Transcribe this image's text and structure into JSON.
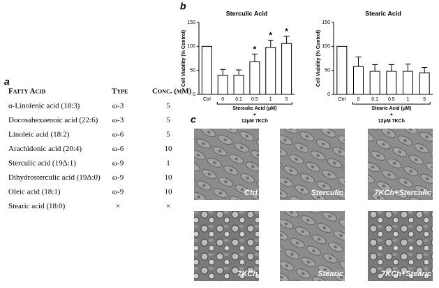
{
  "panels": {
    "a": "a",
    "b": "b",
    "c": "c"
  },
  "table": {
    "header": [
      "Fatty Acid",
      "Type",
      "Conc. (μM)"
    ],
    "rows": [
      [
        "α-Linolenic acid (18:3)",
        "ω-3",
        5
      ],
      [
        "Docosahexaenoic acid (22:6)",
        "ω-3",
        5
      ],
      [
        "Linoleic acid (18:2)",
        "ω-6",
        5
      ],
      [
        "Arachidonic acid (20:4)",
        "ω-6",
        10
      ],
      [
        "Sterculic acid (19Δ:1)",
        "ω-9",
        1
      ],
      [
        "Dihydrosterculic acid (19Δ:0)",
        "ω-9",
        10
      ],
      [
        "Oleic acid (18:1)",
        "ω-9",
        10
      ],
      [
        "Stearic acid (18:0)",
        "×",
        "×"
      ]
    ]
  },
  "chart_data": [
    {
      "type": "bar",
      "title": "Sterculic Acid",
      "ylabel": "Cell Viability (% Control)",
      "categories": [
        "Ctrl",
        "0",
        "0.1",
        "0.5",
        "1",
        "5"
      ],
      "values": [
        100,
        40,
        40,
        68,
        98,
        106
      ],
      "errors": [
        0,
        12,
        11,
        16,
        15,
        15
      ],
      "significance": [
        null,
        null,
        null,
        "*",
        "*",
        "*"
      ],
      "color": "#ffffff",
      "ylim": [
        0,
        150
      ],
      "yticks": [
        0,
        50,
        100,
        150
      ],
      "xlabel_lines": [
        "Sterculic Acid (μM)",
        "+",
        "12μM 7KCh"
      ]
    },
    {
      "type": "bar",
      "title": "Stearic Acid",
      "ylabel": "Cell Viability (% Control)",
      "categories": [
        "Ctrl",
        "0",
        "0.1",
        "0.5",
        "1",
        "5"
      ],
      "values": [
        100,
        58,
        48,
        48,
        48,
        45
      ],
      "errors": [
        0,
        20,
        14,
        14,
        15,
        11
      ],
      "color": "#ffffff",
      "ylim": [
        0,
        150
      ],
      "yticks": [
        0,
        50,
        100,
        150
      ],
      "xlabel_lines": [
        "Stearic Acid (μM)",
        "+",
        "12μM 7KCh"
      ]
    }
  ],
  "micrographs": {
    "labels": [
      "Ctrl",
      "Sterculic",
      "7KCh+Sterculic",
      "7KCh",
      "Stearic",
      "7KCh+Stearic"
    ]
  }
}
